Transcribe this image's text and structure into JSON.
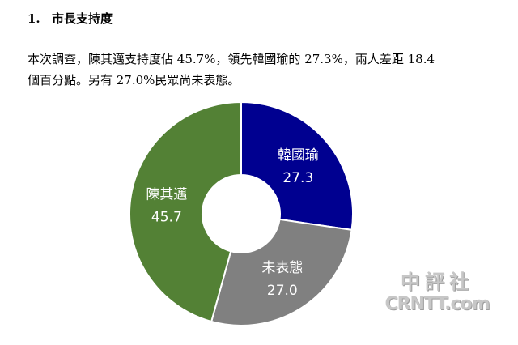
{
  "section": {
    "number": "1.",
    "title": "市長支持度"
  },
  "paragraph": {
    "line1": "本次調查，陳其邁支持度佔 45.7%，領先韓國瑜的 27.3%，兩人差距 18.4",
    "line2": "個百分點。另有 27.0%民眾尚未表態。"
  },
  "chart_data": {
    "type": "pie",
    "donut": true,
    "start_angle_deg": 0,
    "direction": "clockwise",
    "labels": [
      "韓國瑜",
      "未表態",
      "陳其邁"
    ],
    "values": [
      27.3,
      27.0,
      45.7
    ],
    "value_labels": [
      "27.3",
      "27.0",
      "45.7"
    ],
    "colors": [
      "#000090",
      "#808080",
      "#538135"
    ],
    "legend": "none"
  },
  "watermark": {
    "top": "中評社",
    "bottom": "CRNTT.com"
  }
}
